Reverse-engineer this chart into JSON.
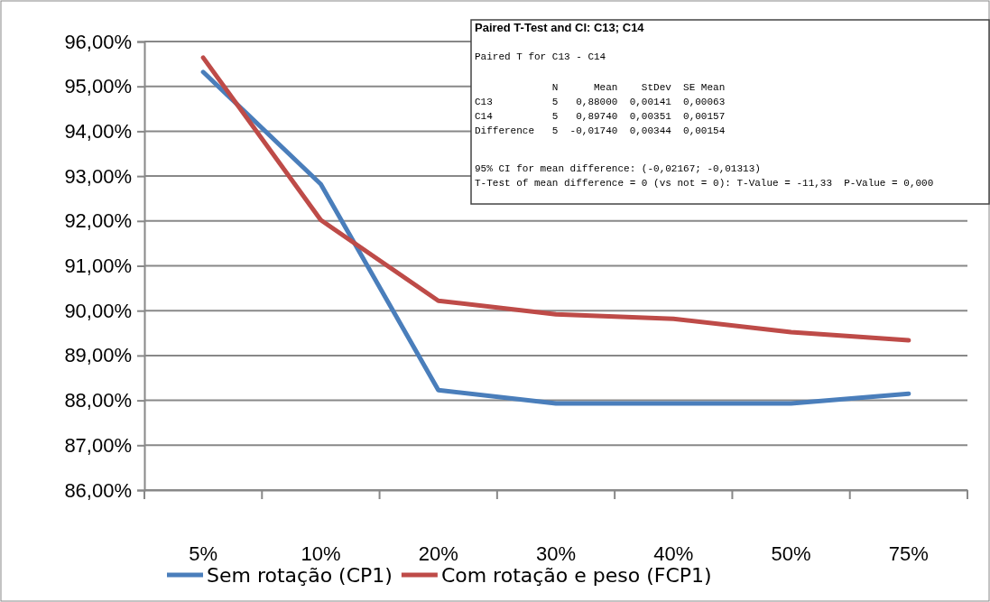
{
  "chart_data": {
    "type": "line",
    "categories": [
      "5%",
      "10%",
      "20%",
      "30%",
      "40%",
      "50%",
      "75%"
    ],
    "series": [
      {
        "name": "Sem rotação (CP1)",
        "color": "#4a7ebb",
        "values": [
          95.32,
          92.82,
          88.23,
          87.93,
          87.93,
          87.93,
          88.15
        ]
      },
      {
        "name": "Com rotação e peso (FCP1)",
        "color": "#be4b48",
        "values": [
          95.64,
          92.02,
          90.22,
          89.92,
          89.82,
          89.52,
          89.34
        ]
      }
    ],
    "ylim": [
      86,
      96
    ],
    "yticks": [
      {
        "value": 86,
        "label": "86,00%"
      },
      {
        "value": 87,
        "label": "87,00%"
      },
      {
        "value": 88,
        "label": "88,00%"
      },
      {
        "value": 89,
        "label": "89,00%"
      },
      {
        "value": 90,
        "label": "90,00%"
      },
      {
        "value": 91,
        "label": "91,00%"
      },
      {
        "value": 92,
        "label": "92,00%"
      },
      {
        "value": 93,
        "label": "93,00%"
      },
      {
        "value": 94,
        "label": "94,00%"
      },
      {
        "value": 95,
        "label": "95,00%"
      },
      {
        "value": 96,
        "label": "96,00%"
      }
    ],
    "grid": "y",
    "legend": "bottom",
    "marker": "none",
    "line_style": "solid",
    "annotations": [
      "Paired T-Test and CI: C13; C14",
      "Paired T for C13 - C14",
      "             N      Mean    StDev  SE Mean",
      "C13          5   0,88000  0,00141  0,00063",
      "C14          5   0,89740  0,00351  0,00157",
      "Difference   5  -0,01740  0,00344  0,00154",
      "95% CI for mean difference: (-0,02167; -0,01313)",
      "T-Test of mean difference = 0 (vs not = 0): T-Value = -11,33  P-Value = 0,000"
    ]
  }
}
